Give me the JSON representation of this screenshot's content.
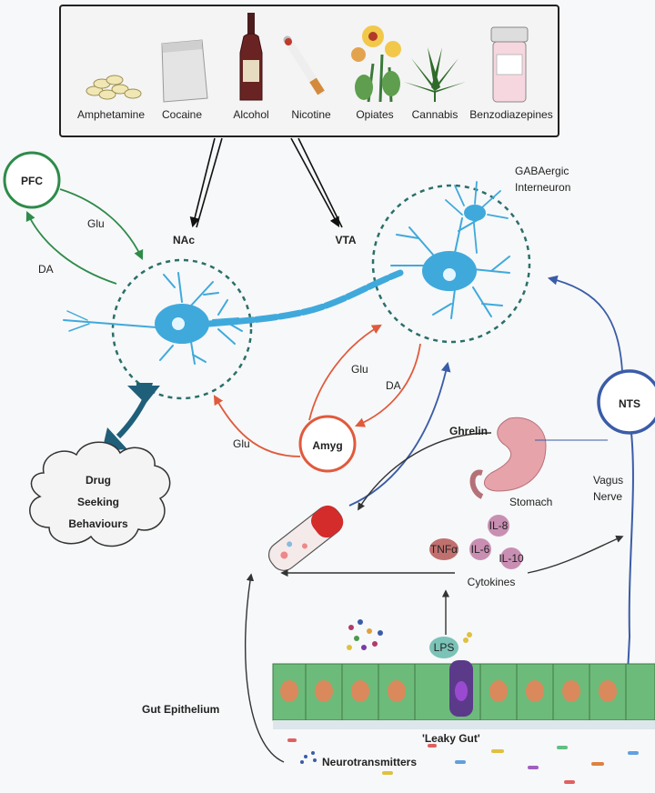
{
  "drugs": [
    "Amphetamine",
    "Cocaine",
    "Alcohol",
    "Nicotine",
    "Opiates",
    "Cannabis",
    "Benzodiazepines"
  ],
  "labels": {
    "pfc": "PFC",
    "nac": "NAc",
    "vta": "VTA",
    "gaba_line1": "GABAergic",
    "gaba_line2": "Interneuron",
    "glu_pfc": "Glu",
    "da_pfc": "DA",
    "glu_amyg_vta": "Glu",
    "da_vta_amyg": "DA",
    "glu_amyg_nac": "Glu",
    "amyg": "Amyg",
    "nts": "NTS",
    "drug_seeking_1": "Drug",
    "drug_seeking_2": "Seeking",
    "drug_seeking_3": "Behaviours",
    "ghrelin": "Ghrelin",
    "stomach": "Stomach",
    "vagus_1": "Vagus",
    "vagus_2": "Nerve",
    "il8": "IL-8",
    "il6": "IL-6",
    "il10": "IL-10",
    "tnfa": "TNFα",
    "cytokines": "Cytokines",
    "lps": "LPS",
    "gut_epithelium": "Gut Epithelium",
    "leaky_gut": "'Leaky Gut'",
    "neurotransmitters": "Neurotransmitters"
  },
  "colors": {
    "green": "#2e8b4a",
    "red": "#e05a3c",
    "blue": "#3a5ca8",
    "neuron": "#3fa9dc",
    "dashed": "#2a6f6a",
    "gut_cell": "#6dbb7a",
    "nucleus": "#d9895b",
    "stomach": "#e7a3aa",
    "cytokine": "#c98fb3",
    "tnf": "#c0706e",
    "lps": "#7bc2b7"
  }
}
